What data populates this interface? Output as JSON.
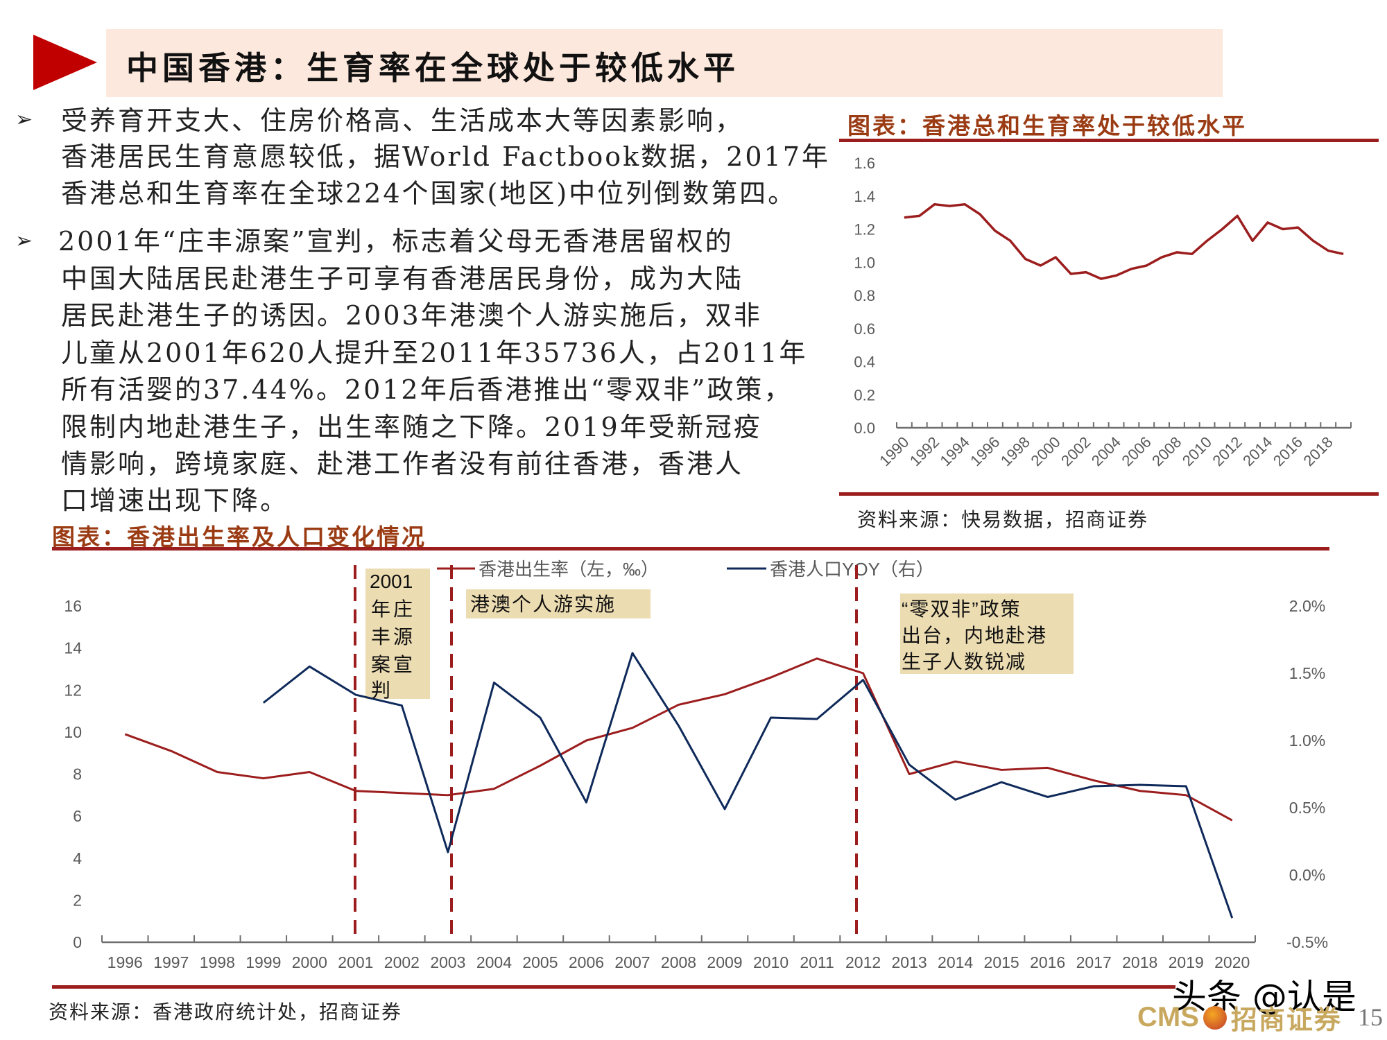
{
  "header": {
    "title": "中国香港：生育率在全球处于较低水平",
    "accent_color": "#c00000",
    "title_bg_color": "#fce8dc"
  },
  "body": {
    "bullet_icon": "arrow-bullet-icon",
    "paragraph1_lines": [
      "受养育开支大、住房价格高、生活成本大等因素影响，",
      "香港居民生育意愿较低，据World Factbook数据，2017年",
      "香港总和生育率在全球224个国家(地区)中位列倒数第四。"
    ],
    "paragraph2_lines": [
      "2001年“庄丰源案”宣判，标志着父母无香港居留权的",
      "中国大陆居民赴港生子可享有香港居民身份，成为大陆",
      "居民赴港生子的诱因。2003年港澳个人游实施后，双非",
      "儿童从2001年620人提升至2011年35736人，占2011年",
      "所有活婴的37.44%。2012年后香港推出“零双非”政策，",
      "限制内地赴港生子，出生率随之下降。2019年受新冠疫",
      "情影响，跨境家庭、赴港工作者没有前往香港，香港人",
      "口增速出现下降。"
    ]
  },
  "chart1": {
    "title": "图表：香港总和生育率处于较低水平",
    "source": "资料来源：快易数据，招商证券",
    "y_ticks": [
      "1.6",
      "1.4",
      "1.2",
      "1.0",
      "0.8",
      "0.6",
      "0.4",
      "0.2",
      "0.0"
    ],
    "x_tick_labels": [
      "1990",
      "1992",
      "1994",
      "1996",
      "1998",
      "2000",
      "2002",
      "2004",
      "2006",
      "2008",
      "2010",
      "2012",
      "2014",
      "2016",
      "2018"
    ],
    "line_color": "#9c1d1d"
  },
  "chart2": {
    "title": "图表：香港出生率及人口变化情况",
    "source": "资料来源：香港政府统计处，招商证券",
    "legend": [
      {
        "label": "香港出生率（左，‰）",
        "color": "#9c1d1d"
      },
      {
        "label": "香港人口YOY（右）",
        "color": "#0f2a5a"
      }
    ],
    "left_ticks": [
      "16",
      "14",
      "12",
      "10",
      "8",
      "6",
      "4",
      "2",
      "0"
    ],
    "right_ticks": [
      "2.0%",
      "1.5%",
      "1.0%",
      "0.5%",
      "0.0%",
      "-0.5%"
    ],
    "annotations": [
      {
        "lines": [
          "2001",
          "年庄",
          "丰源",
          "案宣",
          "判"
        ]
      },
      {
        "lines": [
          "港澳个人游实施"
        ]
      },
      {
        "lines": [
          "“零双非”政策",
          "出台，内地赴港",
          "生子人数锐减"
        ]
      }
    ]
  },
  "footer": {
    "logo_en": "CMS",
    "logo_cn": "招商证券",
    "page_number": "15",
    "watermark": "头条 @认是"
  },
  "chart_data": [
    {
      "type": "line",
      "title": "图表：香港总和生育率处于较低水平",
      "xlabel": "",
      "ylabel": "",
      "ylim": [
        0.0,
        1.6
      ],
      "grid": false,
      "legend_position": "none",
      "x": [
        1990,
        1991,
        1992,
        1993,
        1994,
        1995,
        1996,
        1997,
        1998,
        1999,
        2000,
        2001,
        2002,
        2003,
        2004,
        2005,
        2006,
        2007,
        2008,
        2009,
        2010,
        2011,
        2012,
        2013,
        2014,
        2015,
        2016,
        2017,
        2018,
        2019
      ],
      "series": [
        {
          "name": "香港总和生育率",
          "values": [
            1.27,
            1.28,
            1.35,
            1.34,
            1.35,
            1.29,
            1.19,
            1.13,
            1.02,
            0.98,
            1.03,
            0.93,
            0.94,
            0.9,
            0.92,
            0.96,
            0.98,
            1.03,
            1.06,
            1.05,
            1.13,
            1.2,
            1.28,
            1.13,
            1.24,
            1.2,
            1.21,
            1.13,
            1.07,
            1.05
          ]
        }
      ]
    },
    {
      "type": "line",
      "title": "图表：香港出生率及人口变化情况",
      "xlabel": "",
      "ylabel_left": "香港出生率（‰）",
      "ylabel_right": "香港人口YOY",
      "ylim_left": [
        0,
        16
      ],
      "ylim_right": [
        -0.5,
        2.0
      ],
      "grid": false,
      "legend_position": "top",
      "categories": [
        "1996",
        "1997",
        "1998",
        "1999",
        "2000",
        "2001",
        "2002",
        "2003",
        "2004",
        "2005",
        "2006",
        "2007",
        "2008",
        "2009",
        "2010",
        "2011",
        "2012",
        "2013",
        "2014",
        "2015",
        "2016",
        "2017",
        "2018",
        "2019",
        "2020"
      ],
      "series": [
        {
          "name": "香港出生率（左，‰）",
          "axis": "left",
          "values": [
            9.9,
            9.1,
            8.1,
            7.8,
            8.1,
            7.2,
            7.1,
            7.0,
            7.3,
            8.4,
            9.6,
            10.2,
            11.3,
            11.8,
            12.6,
            13.5,
            12.8,
            8.0,
            8.6,
            8.2,
            8.3,
            7.7,
            7.2,
            7.0,
            5.8
          ]
        },
        {
          "name": "香港人口YOY（右）",
          "axis": "right",
          "unit": "%",
          "values": [
            null,
            null,
            null,
            1.28,
            1.55,
            1.34,
            1.26,
            0.17,
            1.43,
            1.17,
            0.54,
            1.65,
            1.11,
            0.49,
            1.17,
            1.16,
            1.45,
            0.82,
            0.56,
            0.69,
            0.58,
            0.66,
            0.67,
            0.66,
            -0.32
          ]
        }
      ],
      "annotations": [
        {
          "x": "2001",
          "type": "vline-dashed",
          "text": "2001年庄丰源案宣判"
        },
        {
          "x": "2003",
          "type": "vline-dashed",
          "text": "港澳个人游实施"
        },
        {
          "x": "2012",
          "type": "vline-dashed",
          "text": "“零双非”政策出台，内地赴港生子人数锐减"
        }
      ]
    }
  ]
}
